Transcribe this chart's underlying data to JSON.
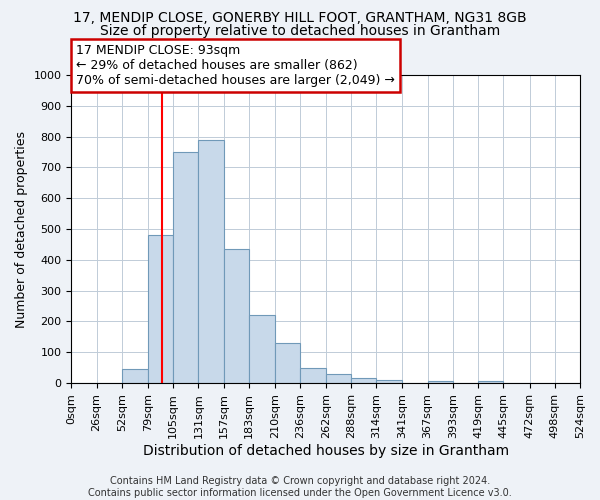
{
  "title1": "17, MENDIP CLOSE, GONERBY HILL FOOT, GRANTHAM, NG31 8GB",
  "title2": "Size of property relative to detached houses in Grantham",
  "xlabel": "Distribution of detached houses by size in Grantham",
  "ylabel": "Number of detached properties",
  "bin_edges": [
    0,
    26,
    52,
    79,
    105,
    131,
    157,
    183,
    210,
    236,
    262,
    288,
    314,
    341,
    367,
    393,
    419,
    445,
    472,
    498,
    524
  ],
  "bar_heights": [
    0,
    0,
    45,
    480,
    750,
    790,
    435,
    220,
    130,
    50,
    28,
    15,
    10,
    0,
    8,
    0,
    8,
    0,
    0,
    0
  ],
  "bar_color": "#c8d9ea",
  "bar_edge_color": "#7099b8",
  "red_line_x": 93,
  "annotation_line1": "17 MENDIP CLOSE: 93sqm",
  "annotation_line2": "← 29% of detached houses are smaller (862)",
  "annotation_line3": "70% of semi-detached houses are larger (2,049) →",
  "annotation_box_color": "white",
  "annotation_box_edge_color": "#cc0000",
  "ylim": [
    0,
    1000
  ],
  "yticks": [
    0,
    100,
    200,
    300,
    400,
    500,
    600,
    700,
    800,
    900,
    1000
  ],
  "footer_text": "Contains HM Land Registry data © Crown copyright and database right 2024.\nContains public sector information licensed under the Open Government Licence v3.0.",
  "bg_color": "#eef2f7",
  "plot_bg_color": "#ffffff",
  "title1_fontsize": 10,
  "title2_fontsize": 10,
  "xlabel_fontsize": 10,
  "ylabel_fontsize": 9,
  "annotation_fontsize": 9,
  "footer_fontsize": 7,
  "tick_fontsize": 8
}
